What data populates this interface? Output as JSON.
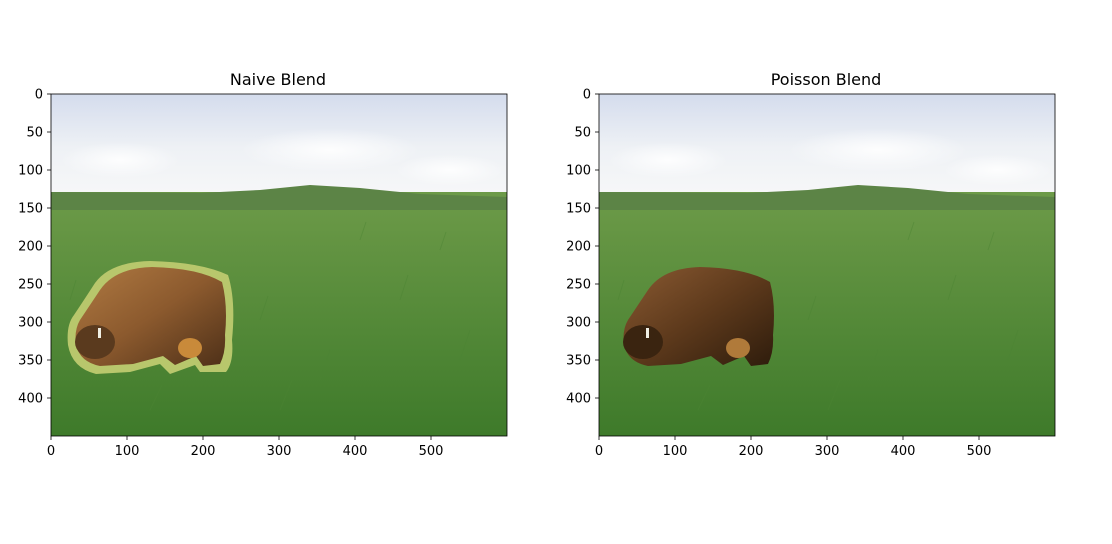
{
  "panels": [
    {
      "id": "naive",
      "title": "Naive Blend",
      "xticks": [
        0,
        100,
        200,
        300,
        400,
        500
      ],
      "yticks": [
        0,
        50,
        100,
        150,
        200,
        250,
        300,
        350,
        400
      ],
      "xlim": [
        0,
        600
      ],
      "ylim": [
        0,
        450
      ],
      "halo": true
    },
    {
      "id": "poisson",
      "title": "Poisson Blend",
      "xticks": [
        0,
        100,
        200,
        300,
        400,
        500
      ],
      "yticks": [
        0,
        50,
        100,
        150,
        200,
        250,
        300,
        350,
        400
      ],
      "xlim": [
        0,
        600
      ],
      "ylim": [
        0,
        450
      ],
      "halo": false
    }
  ],
  "colors": {
    "sky_top": "#dfe6f2",
    "sky_bottom": "#f4f6f8",
    "hill": "#5f8a4a",
    "grass_top": "#6f9a4c",
    "grass_bottom": "#3f7a2a",
    "bison_light": "#9a6a3a",
    "bison_dark": "#4a2f18",
    "halo": "#b6c46a"
  }
}
